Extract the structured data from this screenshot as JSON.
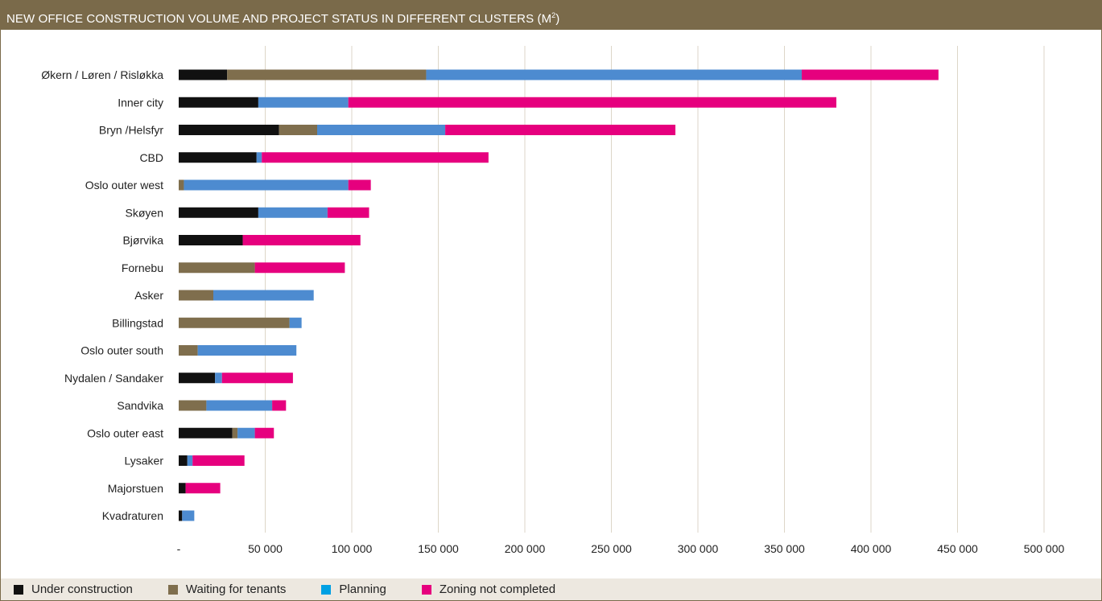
{
  "header": {
    "title": "NEW OFFICE CONSTRUCTION VOLUME AND PROJECT STATUS IN DIFFERENT CLUSTERS (M",
    "title_sup": "2",
    "title_end": ")"
  },
  "colors": {
    "header_bg": "#7a6a4a",
    "under_construction": "#111111",
    "waiting_for_tenants": "#7f6e4d",
    "planning": "#4d8bd0",
    "zoning_not_completed": "#e6007e",
    "legend_planning_swatch": "#00a0e3",
    "grid": "#ddd6c8"
  },
  "chart_data": {
    "type": "bar",
    "orientation": "horizontal",
    "stacked": true,
    "title": "NEW OFFICE CONSTRUCTION VOLUME AND PROJECT STATUS IN DIFFERENT CLUSTERS (M²)",
    "xlim": [
      0,
      500000
    ],
    "xticks": [
      0,
      50000,
      100000,
      150000,
      200000,
      250000,
      300000,
      350000,
      400000,
      450000,
      500000
    ],
    "xtick_labels": [
      "-",
      "50 000",
      "100 000",
      "150 000",
      "200 000",
      "250 000",
      "300 000",
      "350 000",
      "400 000",
      "450 000",
      "500 000"
    ],
    "grid": "vertical",
    "legend_position": "bottom",
    "categories": [
      "Økern / Løren / Risløkka",
      "Inner city",
      "Bryn /Helsfyr",
      "CBD",
      "Oslo outer west",
      "Skøyen",
      "Bjørvika",
      "Fornebu",
      "Asker",
      "Billingstad",
      "Oslo outer south",
      "Nydalen / Sandaker",
      "Sandvika",
      "Oslo outer east",
      "Lysaker",
      "Majorstuen",
      "Kvadraturen"
    ],
    "series": [
      {
        "name": "Under construction",
        "values": [
          28000,
          46000,
          58000,
          45000,
          0,
          46000,
          37000,
          0,
          0,
          0,
          0,
          21000,
          0,
          31000,
          5000,
          4000,
          2000
        ]
      },
      {
        "name": "Waiting for tenants",
        "values": [
          115000,
          0,
          22000,
          0,
          3000,
          0,
          0,
          44000,
          20000,
          64000,
          11000,
          0,
          16000,
          3000,
          0,
          0,
          0
        ]
      },
      {
        "name": "Planning",
        "values": [
          217000,
          52000,
          74000,
          3000,
          95000,
          40000,
          0,
          0,
          58000,
          7000,
          57000,
          4000,
          38000,
          10000,
          3000,
          0,
          7000
        ]
      },
      {
        "name": "Zoning not completed",
        "values": [
          79000,
          282000,
          133000,
          131000,
          13000,
          24000,
          68000,
          52000,
          0,
          0,
          0,
          41000,
          8000,
          11000,
          30000,
          20000,
          0
        ]
      }
    ]
  }
}
